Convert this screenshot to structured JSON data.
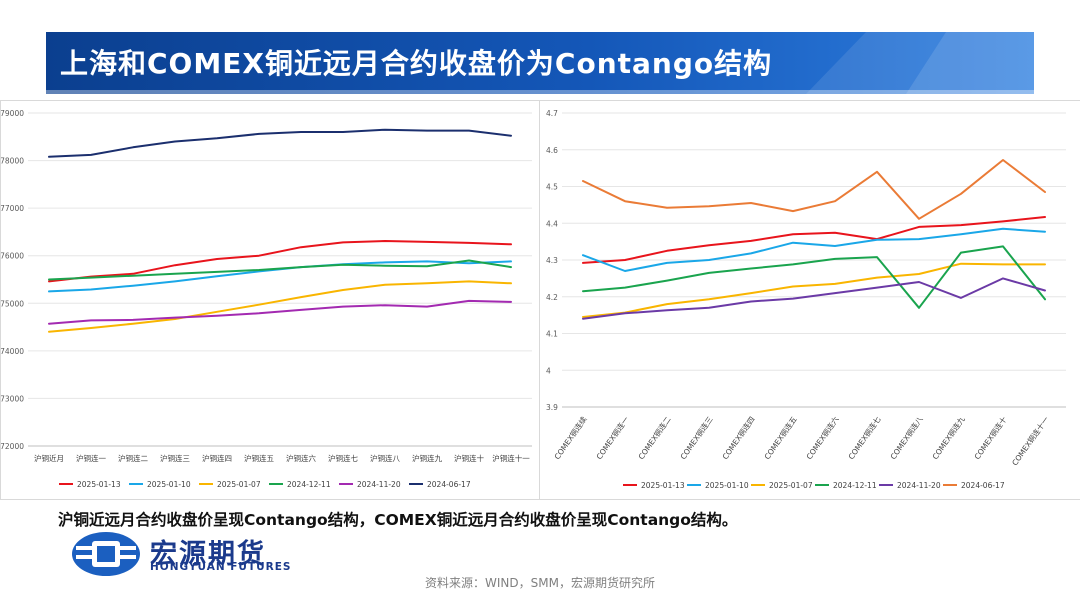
{
  "title": "上海和COMEX铜近远月合约收盘价为Contango结构",
  "conclusion": "沪铜近远月合约收盘价呈现Contango结构，COMEX铜近远月合约收盘价呈现Contango结构。",
  "logo": {
    "cn": "宏源期货",
    "en": "HONGYUAN FUTURES"
  },
  "source": "资料来源：WIND，SMM，宏源期货研究所",
  "colors": {
    "banner": "#1457b8",
    "banner_dark": "#0b3f8f"
  },
  "chart_data": [
    {
      "type": "line",
      "title": "",
      "xlabel": "",
      "ylabel": "",
      "ylim": [
        72000,
        79000
      ],
      "yticks": [
        "72000",
        "73000",
        "74000",
        "75000",
        "76000",
        "77000",
        "78000",
        "79000"
      ],
      "categories": [
        "沪铜近月",
        "沪铜连一",
        "沪铜连二",
        "沪铜连三",
        "沪铜连四",
        "沪铜连五",
        "沪铜连六",
        "沪铜连七",
        "沪铜连八",
        "沪铜连九",
        "沪铜连十",
        "沪铜连十一"
      ],
      "grid": true,
      "legend_position": "bottom",
      "series": [
        {
          "name": "2025-01-13",
          "color": "#e8141c",
          "values": [
            75460,
            75560,
            75620,
            75800,
            75930,
            76000,
            76180,
            76280,
            76310,
            76290,
            76270,
            76240
          ]
        },
        {
          "name": "2025-01-10",
          "color": "#1aa7e8",
          "values": [
            75250,
            75290,
            75370,
            75460,
            75570,
            75670,
            75760,
            75820,
            75860,
            75880,
            75840,
            75880
          ]
        },
        {
          "name": "2025-01-07",
          "color": "#f9b500",
          "values": [
            74400,
            74480,
            74570,
            74670,
            74820,
            74970,
            75130,
            75280,
            75390,
            75420,
            75460,
            75420
          ]
        },
        {
          "name": "2024-12-11",
          "color": "#1aa44e",
          "values": [
            75500,
            75540,
            75580,
            75620,
            75660,
            75700,
            75760,
            75810,
            75790,
            75780,
            75900,
            75760
          ]
        },
        {
          "name": "2024-11-20",
          "color": "#a32ab1",
          "values": [
            74570,
            74640,
            74650,
            74700,
            74740,
            74790,
            74860,
            74930,
            74960,
            74930,
            75050,
            75030
          ]
        },
        {
          "name": "2024-06-17",
          "color": "#1b2f6e",
          "values": [
            78080,
            78120,
            78280,
            78400,
            78470,
            78560,
            78600,
            78600,
            78650,
            78630,
            78630,
            78520
          ]
        }
      ]
    },
    {
      "type": "line",
      "title": "",
      "xlabel": "",
      "ylabel": "",
      "ylim": [
        3.9,
        4.7
      ],
      "yticks": [
        "3.9",
        "4",
        "4.1",
        "4.2",
        "4.3",
        "4.4",
        "4.5",
        "4.6",
        "4.7"
      ],
      "categories": [
        "COMEX铜连续",
        "COMEX铜连一",
        "COMEX铜连二",
        "COMEX铜连三",
        "COMEX铜连四",
        "COMEX铜连五",
        "COMEX铜连六",
        "COMEX铜连七",
        "COMEX铜连八",
        "COMEX铜连九",
        "COMEX铜连十",
        "COMEX铜连十一"
      ],
      "grid": true,
      "legend_position": "bottom",
      "series": [
        {
          "name": "2025-01-13",
          "color": "#e8141c",
          "values": [
            4.292,
            4.3,
            4.325,
            4.34,
            4.352,
            4.37,
            4.374,
            4.357,
            4.39,
            4.395,
            4.405,
            4.417
          ]
        },
        {
          "name": "2025-01-10",
          "color": "#1aa7e8",
          "values": [
            4.313,
            4.27,
            4.292,
            4.3,
            4.318,
            4.347,
            4.338,
            4.355,
            4.357,
            4.37,
            4.385,
            4.377
          ]
        },
        {
          "name": "2025-01-07",
          "color": "#f9b500",
          "values": [
            4.145,
            4.157,
            4.18,
            4.193,
            4.21,
            4.228,
            4.235,
            4.252,
            4.262,
            4.29,
            4.288,
            4.288
          ]
        },
        {
          "name": "2024-12-11",
          "color": "#1aa44e",
          "values": [
            4.215,
            4.225,
            4.244,
            4.265,
            4.277,
            4.288,
            4.303,
            4.308,
            4.17,
            4.32,
            4.337,
            4.193
          ]
        },
        {
          "name": "2024-11-20",
          "color": "#6b3aa6",
          "values": [
            4.14,
            4.155,
            4.163,
            4.17,
            4.187,
            4.195,
            4.21,
            4.225,
            4.24,
            4.197,
            4.25,
            4.217
          ]
        },
        {
          "name": "2024-06-17",
          "color": "#ea7b36",
          "values": [
            4.515,
            4.46,
            4.442,
            4.446,
            4.455,
            4.433,
            4.46,
            4.54,
            4.412,
            4.48,
            4.572,
            4.485
          ]
        }
      ]
    }
  ]
}
